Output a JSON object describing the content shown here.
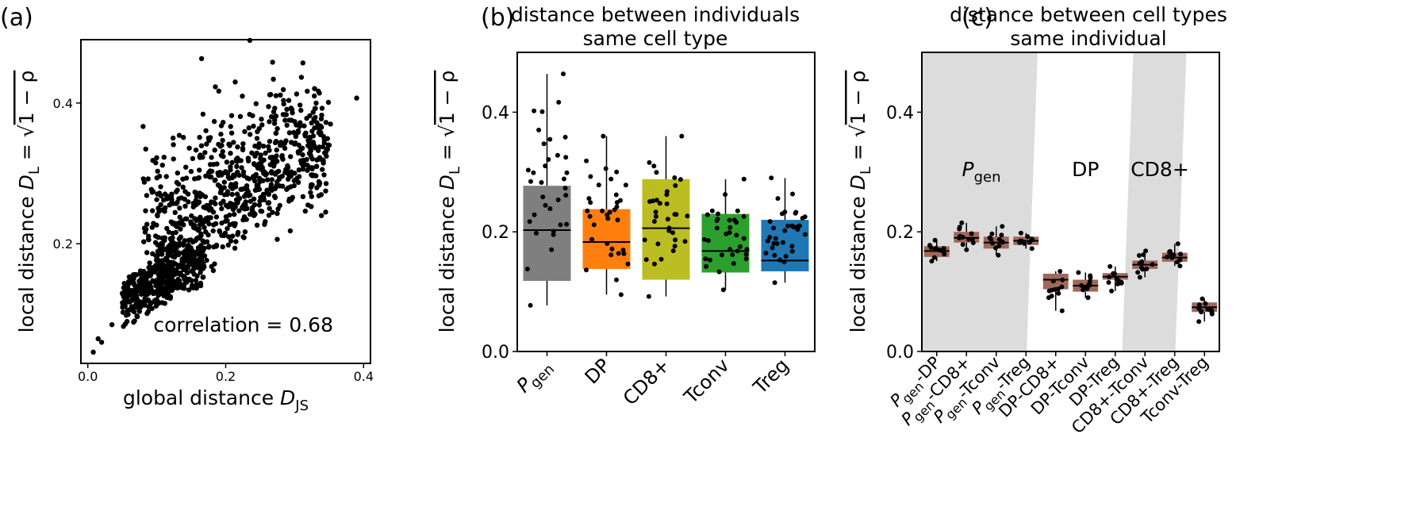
{
  "figure": {
    "panel_letters": [
      "(a)",
      "(b)",
      "(c)"
    ]
  },
  "chart_data": [
    {
      "type": "scatter",
      "panel": "(a)",
      "title": "",
      "xlabel": "global distance D_JS",
      "xlabel_parts": {
        "main": "global distance ",
        "var": "D",
        "sub": "JS"
      },
      "ylabel_parts": {
        "main": "local distance ",
        "var": "D",
        "sub": "L",
        "eq": " = ",
        "rad": "1 − ρ"
      },
      "xlim": [
        -0.01,
        0.41
      ],
      "ylim": [
        0.03,
        0.49
      ],
      "xticks": [
        0.0,
        0.2,
        0.4
      ],
      "xtick_labels": [
        "0.0",
        "0.2",
        "0.4"
      ],
      "yticks": [
        0.2,
        0.4
      ],
      "ytick_labels": [
        "0.2",
        "0.4"
      ],
      "annotation": "correlation  = 0.68",
      "correlation": 0.68,
      "n_points": 1200,
      "outliers": [
        [
          0.008,
          0.046
        ],
        [
          0.235,
          0.489
        ],
        [
          0.39,
          0.407
        ],
        [
          0.165,
          0.463
        ],
        [
          0.185,
          0.423
        ],
        [
          0.268,
          0.458
        ],
        [
          0.312,
          0.457
        ],
        [
          0.352,
          0.37
        ],
        [
          0.345,
          0.245
        ],
        [
          0.035,
          0.085
        ],
        [
          0.02,
          0.06
        ],
        [
          0.015,
          0.065
        ],
        [
          0.345,
          0.275
        ],
        [
          0.35,
          0.34
        ]
      ]
    },
    {
      "type": "box",
      "panel": "(b)",
      "title": "distance between individuals\nsame cell type",
      "title_lines": [
        "distance between individuals",
        "same cell type"
      ],
      "ylabel_parts": {
        "main": "local distance ",
        "var": "D",
        "sub": "L",
        "eq": " = ",
        "rad": "1 − ρ"
      },
      "ylim": [
        0.0,
        0.5
      ],
      "yticks": [
        0.0,
        0.2,
        0.4
      ],
      "ytick_labels": [
        "0.0",
        "0.2",
        "0.4"
      ],
      "categories": [
        "Pgen",
        "DP",
        "CD8+",
        "Tconv",
        "Treg"
      ],
      "category_labels": [
        {
          "main": "P",
          "sub": "gen"
        },
        {
          "main": "DP",
          "sub": ""
        },
        {
          "main": "CD8+",
          "sub": ""
        },
        {
          "main": "Tconv",
          "sub": ""
        },
        {
          "main": "Treg",
          "sub": ""
        }
      ],
      "colors": [
        "#7f7f7f",
        "#ff7f0e",
        "#bcbd22",
        "#2ca02c",
        "#1f77b4"
      ],
      "boxes": [
        {
          "q1": 0.118,
          "median": 0.203,
          "q3": 0.277,
          "min": 0.077,
          "max": 0.464
        },
        {
          "q1": 0.138,
          "median": 0.183,
          "q3": 0.238,
          "min": 0.095,
          "max": 0.36
        },
        {
          "q1": 0.12,
          "median": 0.206,
          "q3": 0.288,
          "min": 0.092,
          "max": 0.36
        },
        {
          "q1": 0.132,
          "median": 0.168,
          "q3": 0.23,
          "min": 0.103,
          "max": 0.288
        },
        {
          "q1": 0.134,
          "median": 0.152,
          "q3": 0.22,
          "min": 0.115,
          "max": 0.29
        }
      ],
      "points_per_box": 34
    },
    {
      "type": "box",
      "panel": "(c)",
      "title": "distance between cell types\nsame individual",
      "title_lines": [
        "distance between cell types",
        "same individual"
      ],
      "ylabel_parts": {
        "main": "local distance ",
        "var": "D",
        "sub": "L",
        "eq": " = ",
        "rad": "1 − ρ"
      },
      "ylim": [
        0.0,
        0.5
      ],
      "yticks": [
        0.0,
        0.2,
        0.4
      ],
      "ytick_labels": [
        "0.0",
        "0.2",
        "0.4"
      ],
      "categories": [
        "Pgen-DP",
        "Pgen-CD8+",
        "Pgen-Tconv",
        "Pgen-Treg",
        "DP-CD8+",
        "DP-Tconv",
        "DP-Treg",
        "CD8+-Tconv",
        "CD8+-Treg",
        "Tconv-Treg"
      ],
      "category_labels": [
        {
          "pre": "P",
          "sub": "gen",
          "post": "-DP"
        },
        {
          "pre": "P",
          "sub": "gen",
          "post": "-CD8+"
        },
        {
          "pre": "P",
          "sub": "gen",
          "post": "-Tconv"
        },
        {
          "pre": "P",
          "sub": "gen",
          "post": "-Treg"
        },
        {
          "pre": "DP-CD8+",
          "sub": "",
          "post": ""
        },
        {
          "pre": "DP-Tconv",
          "sub": "",
          "post": ""
        },
        {
          "pre": "DP-Treg",
          "sub": "",
          "post": ""
        },
        {
          "pre": "CD8+-Tconv",
          "sub": "",
          "post": ""
        },
        {
          "pre": "CD8+-Treg",
          "sub": "",
          "post": ""
        },
        {
          "pre": "Tconv-Treg",
          "sub": "",
          "post": ""
        }
      ],
      "box_color": "#a0685a",
      "shaded_groups": [
        {
          "from_index": 0,
          "to_index": 3,
          "shaded": true,
          "label": {
            "main": "P",
            "sub": "gen"
          }
        },
        {
          "from_index": 4,
          "to_index": 6,
          "shaded": false,
          "label": {
            "main": "DP",
            "sub": ""
          }
        },
        {
          "from_index": 7,
          "to_index": 8,
          "shaded": true,
          "label": {
            "main": "CD8+",
            "sub": ""
          }
        }
      ],
      "shade_color": "#dcdcdc",
      "boxes": [
        {
          "q1": 0.158,
          "median": 0.168,
          "q3": 0.176,
          "min": 0.151,
          "max": 0.186
        },
        {
          "q1": 0.182,
          "median": 0.19,
          "q3": 0.2,
          "min": 0.17,
          "max": 0.215
        },
        {
          "q1": 0.172,
          "median": 0.182,
          "q3": 0.192,
          "min": 0.161,
          "max": 0.209
        },
        {
          "q1": 0.178,
          "median": 0.185,
          "q3": 0.192,
          "min": 0.172,
          "max": 0.198
        },
        {
          "q1": 0.104,
          "median": 0.12,
          "q3": 0.13,
          "min": 0.068,
          "max": 0.134
        },
        {
          "q1": 0.1,
          "median": 0.11,
          "q3": 0.12,
          "min": 0.09,
          "max": 0.132
        },
        {
          "q1": 0.12,
          "median": 0.125,
          "q3": 0.131,
          "min": 0.101,
          "max": 0.142
        },
        {
          "q1": 0.138,
          "median": 0.145,
          "q3": 0.152,
          "min": 0.124,
          "max": 0.168
        },
        {
          "q1": 0.15,
          "median": 0.157,
          "q3": 0.165,
          "min": 0.143,
          "max": 0.18
        },
        {
          "q1": 0.066,
          "median": 0.074,
          "q3": 0.082,
          "min": 0.05,
          "max": 0.088
        }
      ],
      "points_per_box": 12
    }
  ]
}
